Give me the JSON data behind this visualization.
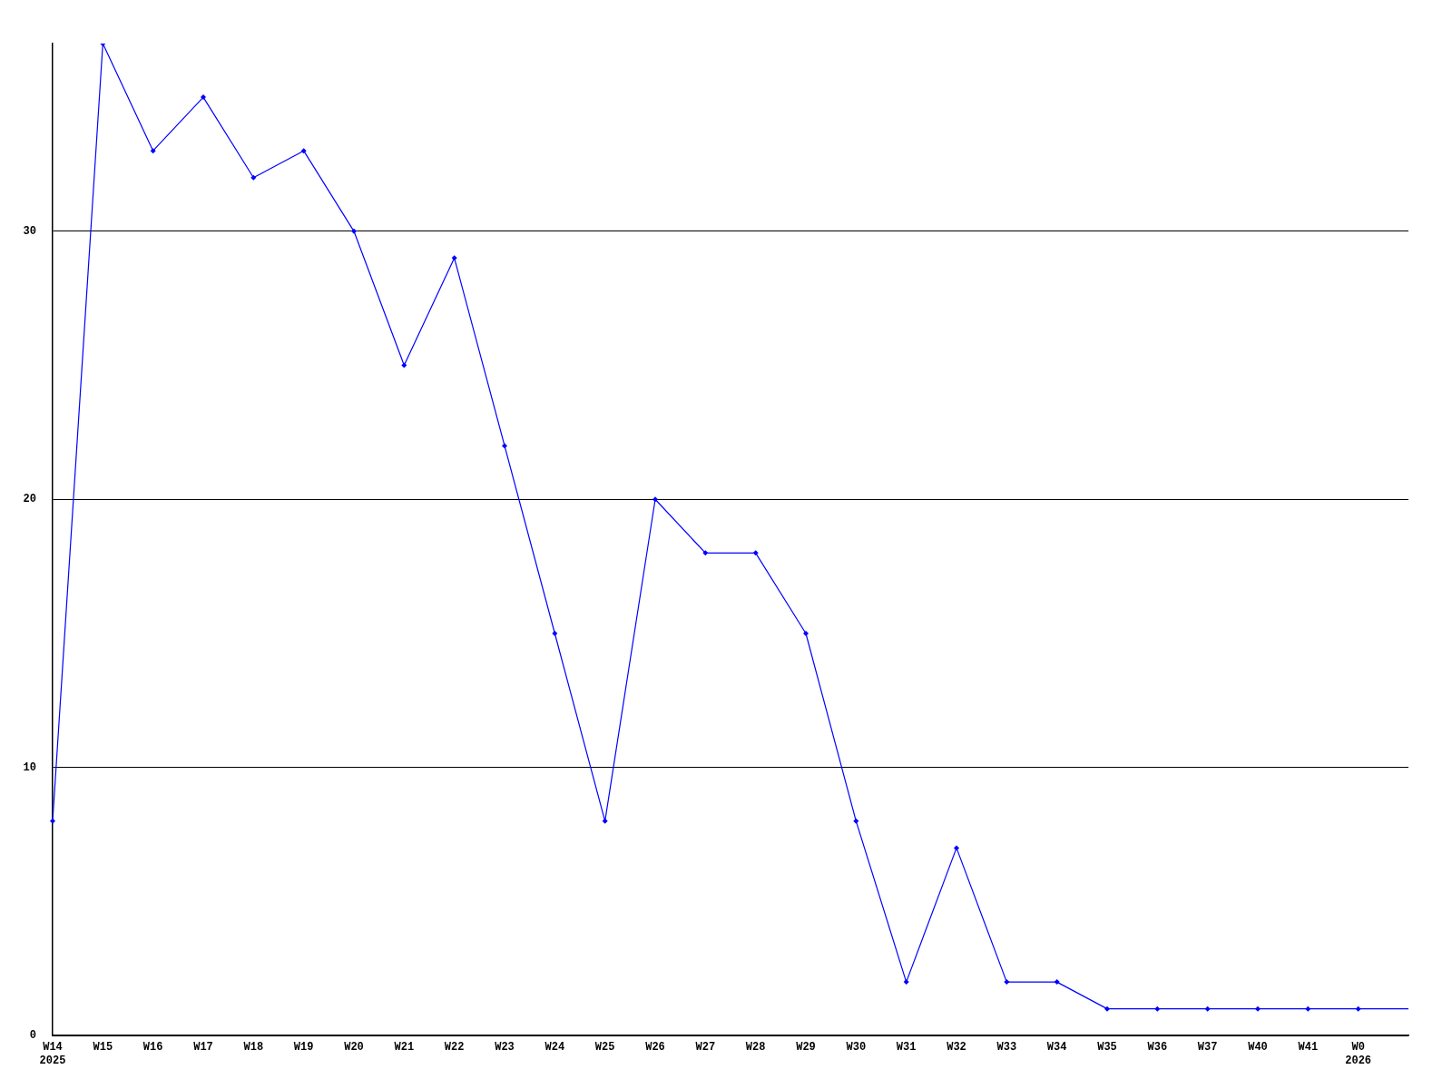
{
  "chart_data": {
    "type": "line",
    "categories": [
      "W14\n2025",
      "W15",
      "W16",
      "W17",
      "W18",
      "W19",
      "W20",
      "W21",
      "W22",
      "W23",
      "W24",
      "W25",
      "W26",
      "W27",
      "W28",
      "W29",
      "W30",
      "W31",
      "W32",
      "W33",
      "W34",
      "W35",
      "W36",
      "W37",
      "W40",
      "W41",
      "W0\n2026",
      null
    ],
    "values": [
      8,
      37,
      33,
      35,
      32,
      33,
      30,
      25,
      29,
      22,
      15,
      8,
      20,
      18,
      18,
      15,
      8,
      2,
      7,
      2,
      2,
      1,
      1,
      1,
      1,
      1,
      1,
      1
    ],
    "color": "#0000ff",
    "ylim": [
      0,
      37
    ],
    "yticks": [
      0,
      10,
      20,
      30
    ],
    "grid": "y",
    "marker": "diamond",
    "line_style": "solid",
    "legend": false
  }
}
